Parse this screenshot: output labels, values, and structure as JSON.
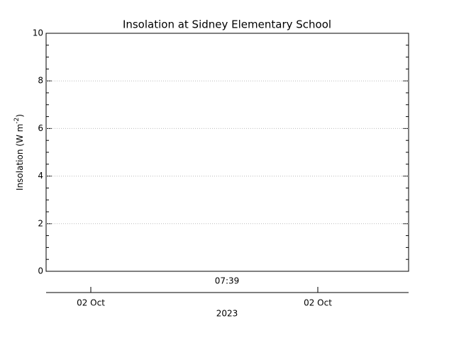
{
  "chart_data": {
    "type": "line",
    "title": "Insolation at Sidney Elementary School",
    "y_label": [
      "Insolation (W m",
      "-2",
      ")"
    ],
    "ylim": [
      0,
      10
    ],
    "yticks": [
      0,
      2,
      4,
      6,
      8,
      10
    ],
    "y_minor_intervals": 4,
    "grid": true,
    "x_label": "07:39",
    "date_ticks": [
      "02 Oct",
      "02 Oct"
    ],
    "date_label": "2023",
    "series": []
  }
}
